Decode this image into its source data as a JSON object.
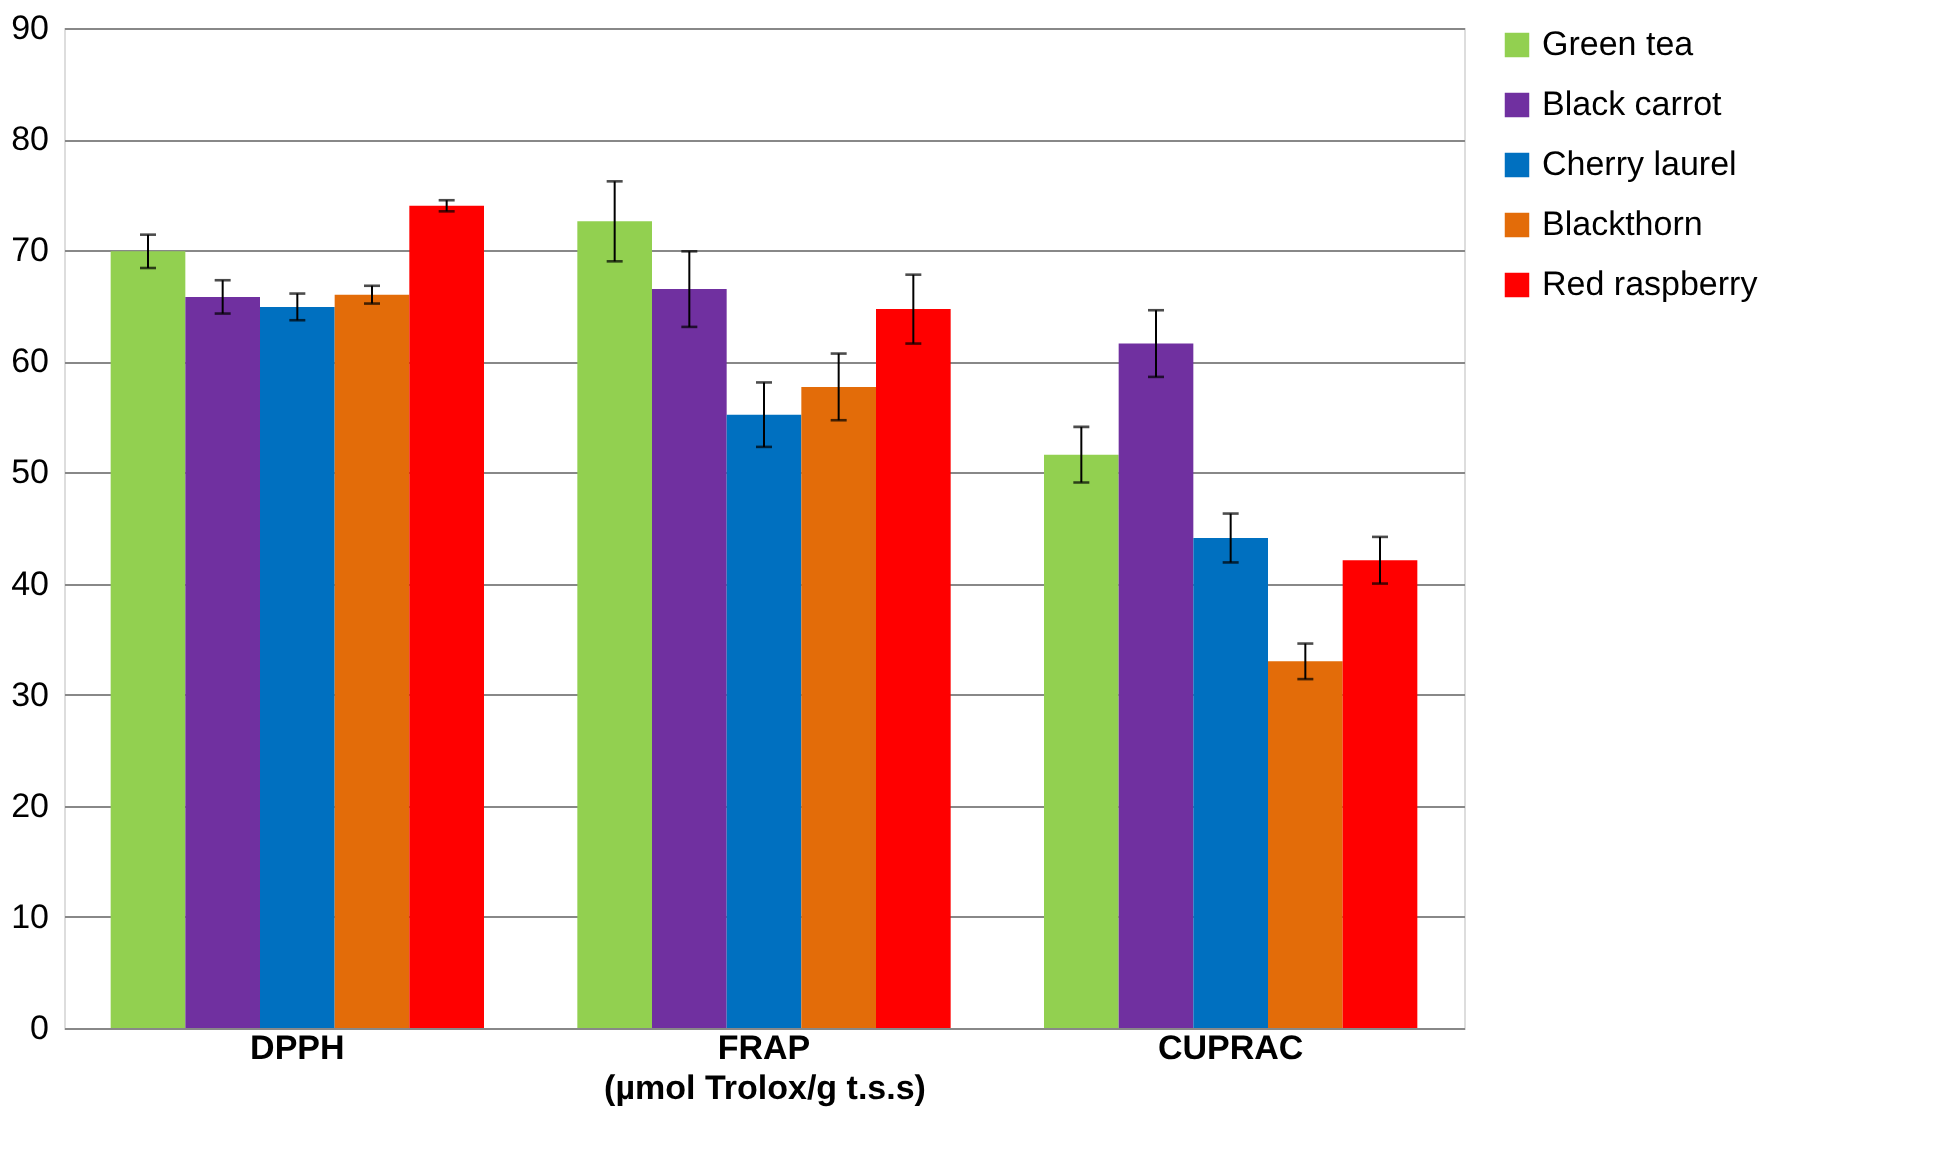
{
  "chart_data": {
    "type": "bar",
    "xlabel": "(µmol Trolox/g t.s.s)",
    "categories": [
      "DPPH",
      "FRAP",
      "CUPRAC"
    ],
    "series": [
      {
        "name": "Green tea",
        "color": "#92d050",
        "values": [
          69.9,
          72.6,
          51.6
        ],
        "errors": [
          1.5,
          3.6,
          2.5
        ]
      },
      {
        "name": "Black carrot",
        "color": "#7030a0",
        "values": [
          65.8,
          66.5,
          61.6
        ],
        "errors": [
          1.5,
          3.4,
          3.0
        ]
      },
      {
        "name": "Cherry laurel",
        "color": "#0070c0",
        "values": [
          64.9,
          55.2,
          44.1
        ],
        "errors": [
          1.2,
          2.9,
          2.2
        ]
      },
      {
        "name": "Blackthorn",
        "color": "#e36c09",
        "values": [
          66.0,
          57.7,
          33.0
        ],
        "errors": [
          0.8,
          3.0,
          1.6
        ]
      },
      {
        "name": "Red raspberry",
        "color": "#ff0000",
        "values": [
          74.0,
          64.7,
          42.1
        ],
        "errors": [
          0.5,
          3.1,
          2.1
        ]
      }
    ],
    "ylim": [
      0,
      90
    ],
    "yticks": [
      0,
      10,
      20,
      30,
      40,
      50,
      60,
      70,
      80,
      90
    ],
    "grid": "y",
    "legend": "right"
  }
}
